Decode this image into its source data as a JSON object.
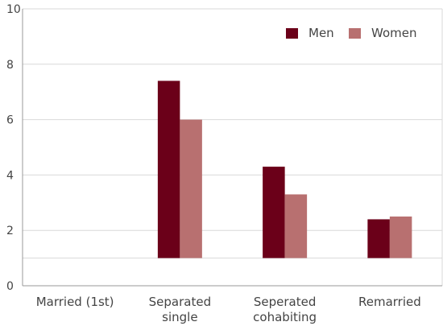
{
  "chart_data": {
    "type": "bar",
    "title": "",
    "xlabel": "",
    "ylabel": "",
    "ylim": [
      0,
      10
    ],
    "y_baseline": 1,
    "yticks": [
      0,
      2,
      4,
      6,
      8,
      10
    ],
    "grid": true,
    "legend_position": "top-right",
    "categories": [
      [
        "Married (1st)"
      ],
      [
        "Separated",
        "single"
      ],
      [
        "Seperated",
        "cohabiting"
      ],
      [
        "Remarried"
      ]
    ],
    "series": [
      {
        "name": "Men",
        "color": "#6b0019",
        "values": [
          1,
          7.4,
          4.3,
          2.4
        ]
      },
      {
        "name": "Women",
        "color": "#b87070",
        "values": [
          1,
          6.0,
          3.3,
          2.5
        ]
      }
    ]
  }
}
